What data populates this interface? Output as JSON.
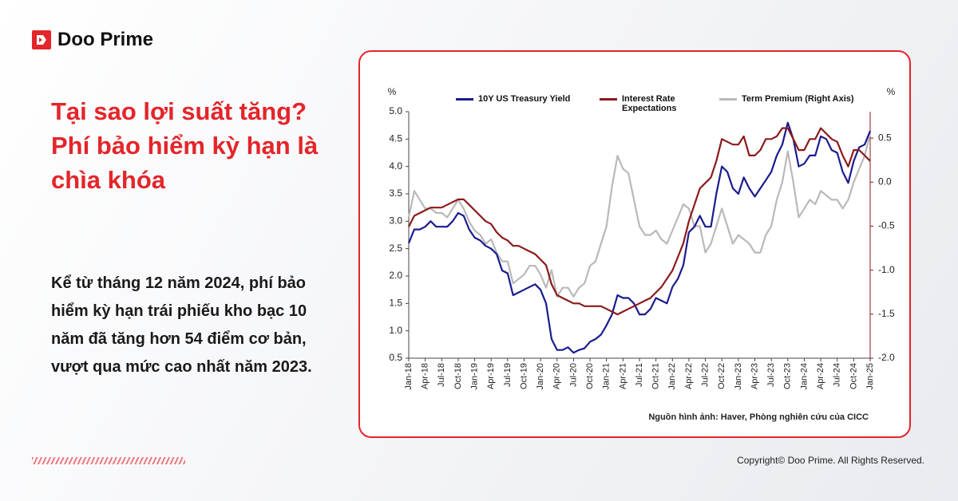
{
  "brand": "Doo Prime",
  "headline": [
    "Tại sao lợi suất tăng?",
    "Phí bảo hiểm kỳ hạn là chìa khóa"
  ],
  "body": "Kể từ tháng 12 năm 2024, phí bảo hiểm kỳ hạn trái phiếu kho bạc 10 năm đã tăng hơn 54 điểm cơ bản, vượt qua mức cao nhất năm 2023.",
  "copyright": "Copyright© Doo Prime. All Rights Reserved.",
  "chart_data": {
    "type": "line",
    "y_label": "%",
    "y2_label": "%",
    "source": "Nguồn hình ảnh: Haver, Phòng nghiên cứu của CICC",
    "categories": [
      "Jan-18",
      null,
      null,
      "Apr-18",
      null,
      null,
      "Jul-18",
      null,
      null,
      "Oct-18",
      null,
      null,
      "Jan-19",
      null,
      null,
      "Apr-19",
      null,
      null,
      "Jul-19",
      null,
      null,
      "Oct-19",
      null,
      null,
      "Jan-20",
      null,
      null,
      "Apr-20",
      null,
      null,
      "Jul-20",
      null,
      null,
      "Oct-20",
      null,
      null,
      "Jan-21",
      null,
      null,
      "Apr-21",
      null,
      null,
      "Jul-21",
      null,
      null,
      "Oct-21",
      null,
      null,
      "Jan-22",
      null,
      null,
      "Apr-22",
      null,
      null,
      "Jul-22",
      null,
      null,
      "Oct-22",
      null,
      null,
      "Jan-23",
      null,
      null,
      "Apr-23",
      null,
      null,
      "Jul-23",
      null,
      null,
      "Oct-23",
      null,
      null,
      "Jan-24",
      null,
      null,
      "Apr-24",
      null,
      null,
      "Jul-24",
      null,
      null,
      "Oct-24",
      null,
      null,
      "Jan-25"
    ],
    "series": [
      {
        "name": "10Y US Treasury Yield",
        "color": "#1b1b8f",
        "axis": "y",
        "values": [
          2.6,
          2.85,
          2.85,
          2.9,
          3.0,
          2.9,
          2.9,
          2.9,
          3.0,
          3.15,
          3.1,
          2.85,
          2.7,
          2.65,
          2.55,
          2.5,
          2.4,
          2.1,
          2.05,
          1.65,
          1.7,
          1.75,
          1.8,
          1.85,
          1.75,
          1.5,
          0.85,
          0.65,
          0.65,
          0.7,
          0.6,
          0.65,
          0.68,
          0.8,
          0.85,
          0.93,
          1.1,
          1.3,
          1.65,
          1.6,
          1.6,
          1.5,
          1.3,
          1.3,
          1.4,
          1.6,
          1.55,
          1.5,
          1.8,
          1.95,
          2.2,
          2.8,
          2.9,
          3.1,
          2.9,
          2.9,
          3.5,
          4.0,
          3.9,
          3.6,
          3.5,
          3.8,
          3.6,
          3.45,
          3.6,
          3.75,
          3.9,
          4.2,
          4.4,
          4.8,
          4.5,
          4.0,
          4.05,
          4.2,
          4.2,
          4.55,
          4.5,
          4.3,
          4.25,
          3.9,
          3.7,
          4.1,
          4.35,
          4.4,
          4.65
        ]
      },
      {
        "name": "Interest Rate Expectations",
        "color": "#8b1a1a",
        "axis": "y",
        "values": [
          2.9,
          3.1,
          3.15,
          3.2,
          3.25,
          3.25,
          3.25,
          3.3,
          3.35,
          3.4,
          3.4,
          3.3,
          3.2,
          3.1,
          3.0,
          2.95,
          2.8,
          2.7,
          2.65,
          2.55,
          2.55,
          2.5,
          2.45,
          2.4,
          2.3,
          2.2,
          1.85,
          1.65,
          1.6,
          1.55,
          1.5,
          1.5,
          1.45,
          1.45,
          1.45,
          1.45,
          1.4,
          1.35,
          1.3,
          1.35,
          1.4,
          1.45,
          1.5,
          1.55,
          1.6,
          1.7,
          1.8,
          1.95,
          2.1,
          2.35,
          2.6,
          3.0,
          3.3,
          3.6,
          3.7,
          3.8,
          4.1,
          4.5,
          4.45,
          4.4,
          4.4,
          4.55,
          4.2,
          4.2,
          4.3,
          4.5,
          4.5,
          4.55,
          4.7,
          4.7,
          4.5,
          4.3,
          4.3,
          4.5,
          4.5,
          4.7,
          4.6,
          4.5,
          4.45,
          4.2,
          4.0,
          4.3,
          4.3,
          4.2,
          4.1
        ]
      },
      {
        "name": "Term Premium (Right Axis)",
        "color": "#b9b9b9",
        "axis": "y2",
        "values": [
          -0.4,
          -0.1,
          -0.2,
          -0.3,
          -0.3,
          -0.35,
          -0.35,
          -0.4,
          -0.3,
          -0.2,
          -0.3,
          -0.45,
          -0.55,
          -0.6,
          -0.7,
          -0.65,
          -0.8,
          -0.9,
          -0.9,
          -1.15,
          -1.1,
          -1.05,
          -0.95,
          -0.95,
          -1.05,
          -1.2,
          -1.0,
          -1.3,
          -1.2,
          -1.2,
          -1.3,
          -1.2,
          -1.15,
          -0.95,
          -0.9,
          -0.7,
          -0.5,
          -0.05,
          0.3,
          0.15,
          0.1,
          -0.2,
          -0.5,
          -0.6,
          -0.6,
          -0.55,
          -0.65,
          -0.7,
          -0.55,
          -0.4,
          -0.25,
          -0.3,
          -0.5,
          -0.5,
          -0.8,
          -0.7,
          -0.5,
          -0.3,
          -0.5,
          -0.7,
          -0.6,
          -0.65,
          -0.7,
          -0.8,
          -0.8,
          -0.6,
          -0.5,
          -0.2,
          0.0,
          0.35,
          0.0,
          -0.4,
          -0.3,
          -0.2,
          -0.25,
          -0.1,
          -0.15,
          -0.2,
          -0.2,
          -0.3,
          -0.2,
          0.0,
          0.15,
          0.3,
          0.55
        ]
      }
    ],
    "ylim": [
      0.5,
      5.0
    ],
    "yticks": [
      {
        "value": 0.5,
        "label": "0.5"
      },
      {
        "value": 1,
        "label": "1.0"
      },
      {
        "value": 1.5,
        "label": "1.5"
      },
      {
        "value": 2,
        "label": "2.0"
      },
      {
        "value": 2.5,
        "label": "2.5"
      },
      {
        "value": 3,
        "label": "3.0"
      },
      {
        "value": 3.5,
        "label": "3.5"
      },
      {
        "value": 4,
        "label": "4.0"
      },
      {
        "value": 4.5,
        "label": "4.5"
      },
      {
        "value": 5,
        "label": "5.0"
      }
    ],
    "y2lim": [
      -2.0,
      0.8
    ],
    "y2ticks": [
      {
        "value": -2,
        "label": "-2.0"
      },
      {
        "value": -1.5,
        "label": "-1.5"
      },
      {
        "value": -1,
        "label": "-1.0"
      },
      {
        "value": -0.5,
        "label": "-0.5"
      },
      {
        "value": 0,
        "label": "0.0"
      },
      0.5
    ]
  }
}
